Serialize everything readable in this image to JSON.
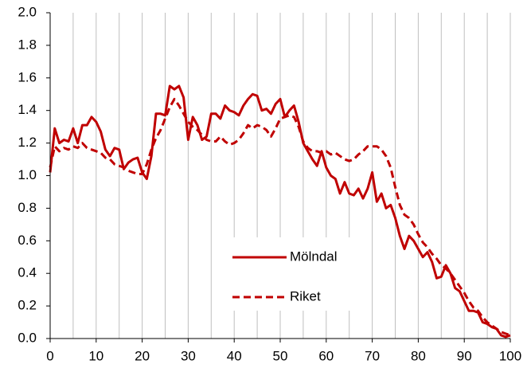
{
  "chart_data": {
    "type": "line",
    "x": [
      0,
      1,
      2,
      3,
      4,
      5,
      6,
      7,
      8,
      9,
      10,
      11,
      12,
      13,
      14,
      15,
      16,
      17,
      18,
      19,
      20,
      21,
      22,
      23,
      24,
      25,
      26,
      27,
      28,
      29,
      30,
      31,
      32,
      33,
      34,
      35,
      36,
      37,
      38,
      39,
      40,
      41,
      42,
      43,
      44,
      45,
      46,
      47,
      48,
      49,
      50,
      51,
      52,
      53,
      54,
      55,
      56,
      57,
      58,
      59,
      60,
      61,
      62,
      63,
      64,
      65,
      66,
      67,
      68,
      69,
      70,
      71,
      72,
      73,
      74,
      75,
      76,
      77,
      78,
      79,
      80,
      81,
      82,
      83,
      84,
      85,
      86,
      87,
      88,
      89,
      90,
      91,
      92,
      93,
      94,
      95,
      96,
      97,
      98,
      99,
      100
    ],
    "series": [
      {
        "name": "Mölndal",
        "color": "#c00000",
        "linestyle": "solid",
        "values": [
          1.02,
          1.29,
          1.2,
          1.22,
          1.21,
          1.29,
          1.2,
          1.31,
          1.31,
          1.36,
          1.33,
          1.27,
          1.16,
          1.12,
          1.17,
          1.16,
          1.04,
          1.08,
          1.1,
          1.11,
          1.02,
          0.98,
          1.12,
          1.38,
          1.38,
          1.37,
          1.55,
          1.53,
          1.55,
          1.48,
          1.22,
          1.36,
          1.31,
          1.22,
          1.24,
          1.38,
          1.38,
          1.35,
          1.43,
          1.4,
          1.39,
          1.37,
          1.43,
          1.47,
          1.5,
          1.49,
          1.4,
          1.41,
          1.38,
          1.44,
          1.47,
          1.36,
          1.4,
          1.43,
          1.33,
          1.2,
          1.15,
          1.1,
          1.06,
          1.15,
          1.05,
          1.0,
          0.98,
          0.89,
          0.96,
          0.89,
          0.88,
          0.92,
          0.86,
          0.92,
          1.02,
          0.84,
          0.89,
          0.8,
          0.82,
          0.74,
          0.63,
          0.55,
          0.63,
          0.6,
          0.55,
          0.5,
          0.53,
          0.47,
          0.37,
          0.38,
          0.45,
          0.4,
          0.31,
          0.29,
          0.23,
          0.17,
          0.17,
          0.16,
          0.1,
          0.09,
          0.07,
          0.06,
          0.02,
          0.01,
          0.02
        ]
      },
      {
        "name": "Riket",
        "color": "#c00000",
        "linestyle": "dashed",
        "values": [
          1.05,
          1.18,
          1.15,
          1.17,
          1.16,
          1.18,
          1.17,
          1.2,
          1.17,
          1.16,
          1.15,
          1.14,
          1.11,
          1.1,
          1.07,
          1.06,
          1.05,
          1.03,
          1.02,
          1.01,
          1.01,
          1.07,
          1.16,
          1.23,
          1.28,
          1.35,
          1.42,
          1.47,
          1.43,
          1.38,
          1.33,
          1.3,
          1.28,
          1.25,
          1.22,
          1.21,
          1.21,
          1.24,
          1.21,
          1.19,
          1.2,
          1.22,
          1.26,
          1.31,
          1.29,
          1.31,
          1.3,
          1.28,
          1.24,
          1.29,
          1.35,
          1.36,
          1.37,
          1.36,
          1.3,
          1.21,
          1.17,
          1.15,
          1.15,
          1.14,
          1.15,
          1.13,
          1.14,
          1.12,
          1.1,
          1.09,
          1.1,
          1.13,
          1.15,
          1.18,
          1.18,
          1.18,
          1.16,
          1.12,
          1.05,
          0.93,
          0.82,
          0.76,
          0.74,
          0.7,
          0.64,
          0.59,
          0.56,
          0.52,
          0.49,
          0.45,
          0.43,
          0.4,
          0.36,
          0.32,
          0.28,
          0.23,
          0.19,
          0.17,
          0.13,
          0.1,
          0.08,
          0.06,
          0.04,
          0.03,
          0.02
        ]
      }
    ],
    "xlim": [
      0,
      100
    ],
    "xticks": [
      0,
      10,
      20,
      30,
      40,
      50,
      60,
      70,
      80,
      90,
      100
    ],
    "xminorticks": [
      5,
      15,
      25,
      35,
      45,
      55,
      65,
      75,
      85,
      95
    ],
    "ylim": [
      0,
      2
    ],
    "yticks": [
      {
        "value": 0,
        "label": "0.0"
      },
      0.2,
      0.4,
      0.6,
      0.8,
      {
        "value": 1,
        "label": "1.0"
      },
      1.2,
      1.4,
      1.6,
      1.8,
      {
        "value": 2,
        "label": "2.0"
      }
    ],
    "xgrid": true,
    "legend": "lower center"
  }
}
